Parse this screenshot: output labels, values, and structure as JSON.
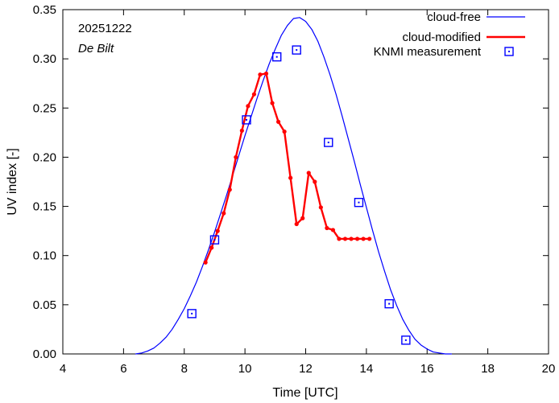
{
  "chart_data": {
    "type": "line",
    "title": "",
    "date_label": "20251222",
    "location_label": "De Bilt",
    "xlabel": "Time  [UTC]",
    "ylabel": "UV index  [-]",
    "xlim": [
      4,
      20
    ],
    "ylim": [
      0,
      0.35
    ],
    "xticks": [
      4,
      6,
      8,
      10,
      12,
      14,
      16,
      18,
      20
    ],
    "xtick_labels": [
      "4",
      "6",
      "8",
      "10",
      "12",
      "14",
      "16",
      "18",
      "20"
    ],
    "yticks": [
      0,
      0.05,
      0.1,
      0.15,
      0.2,
      0.25,
      0.3,
      0.35
    ],
    "ytick_labels": [
      "0.00",
      "0.05",
      "0.10",
      "0.15",
      "0.20",
      "0.25",
      "0.30",
      "0.35"
    ],
    "legend_position": "top-right",
    "series": [
      {
        "name": "cloud-free",
        "style": "line",
        "color": "#0000ff",
        "x": [
          6.4,
          6.6,
          6.8,
          7.0,
          7.2,
          7.4,
          7.6,
          7.8,
          8.0,
          8.2,
          8.4,
          8.6,
          8.8,
          9.0,
          9.2,
          9.4,
          9.6,
          9.8,
          10.0,
          10.2,
          10.4,
          10.6,
          10.8,
          11.0,
          11.2,
          11.4,
          11.6,
          11.8,
          12.0,
          12.2,
          12.4,
          12.6,
          12.8,
          13.0,
          13.2,
          13.4,
          13.6,
          13.8,
          14.0,
          14.2,
          14.4,
          14.6,
          14.8,
          15.0,
          15.2,
          15.4,
          15.6,
          15.8,
          16.0,
          16.2,
          16.4,
          16.6,
          16.8
        ],
        "y": [
          0.0,
          0.001,
          0.003,
          0.006,
          0.011,
          0.017,
          0.025,
          0.035,
          0.046,
          0.059,
          0.073,
          0.089,
          0.106,
          0.124,
          0.143,
          0.162,
          0.182,
          0.202,
          0.222,
          0.241,
          0.26,
          0.278,
          0.295,
          0.31,
          0.324,
          0.334,
          0.341,
          0.342,
          0.338,
          0.33,
          0.318,
          0.302,
          0.284,
          0.264,
          0.242,
          0.219,
          0.196,
          0.172,
          0.149,
          0.126,
          0.104,
          0.084,
          0.065,
          0.049,
          0.035,
          0.024,
          0.015,
          0.009,
          0.005,
          0.002,
          0.001,
          0.0,
          0.0
        ]
      },
      {
        "name": "cloud-modified",
        "style": "line-points",
        "color": "#ff0000",
        "x": [
          8.7,
          8.9,
          9.1,
          9.3,
          9.5,
          9.7,
          9.9,
          10.1,
          10.3,
          10.5,
          10.7,
          10.9,
          11.1,
          11.3,
          11.5,
          11.7,
          11.9,
          12.1,
          12.3,
          12.5,
          12.7,
          12.9,
          13.1,
          13.3,
          13.5,
          13.7,
          13.9,
          14.1
        ],
        "y": [
          0.093,
          0.108,
          0.125,
          0.143,
          0.167,
          0.2,
          0.227,
          0.252,
          0.264,
          0.284,
          0.285,
          0.255,
          0.236,
          0.226,
          0.179,
          0.132,
          0.138,
          0.184,
          0.175,
          0.149,
          0.128,
          0.126,
          0.117,
          0.117,
          0.117,
          0.117,
          0.117,
          0.117
        ]
      },
      {
        "name": "KNMI measurement",
        "style": "markers",
        "color": "#0000ff",
        "x": [
          8.25,
          9.0,
          10.05,
          11.05,
          11.7,
          12.75,
          13.75,
          14.75,
          15.3
        ],
        "y": [
          0.041,
          0.116,
          0.238,
          0.302,
          0.309,
          0.215,
          0.154,
          0.051,
          0.014
        ]
      }
    ]
  }
}
